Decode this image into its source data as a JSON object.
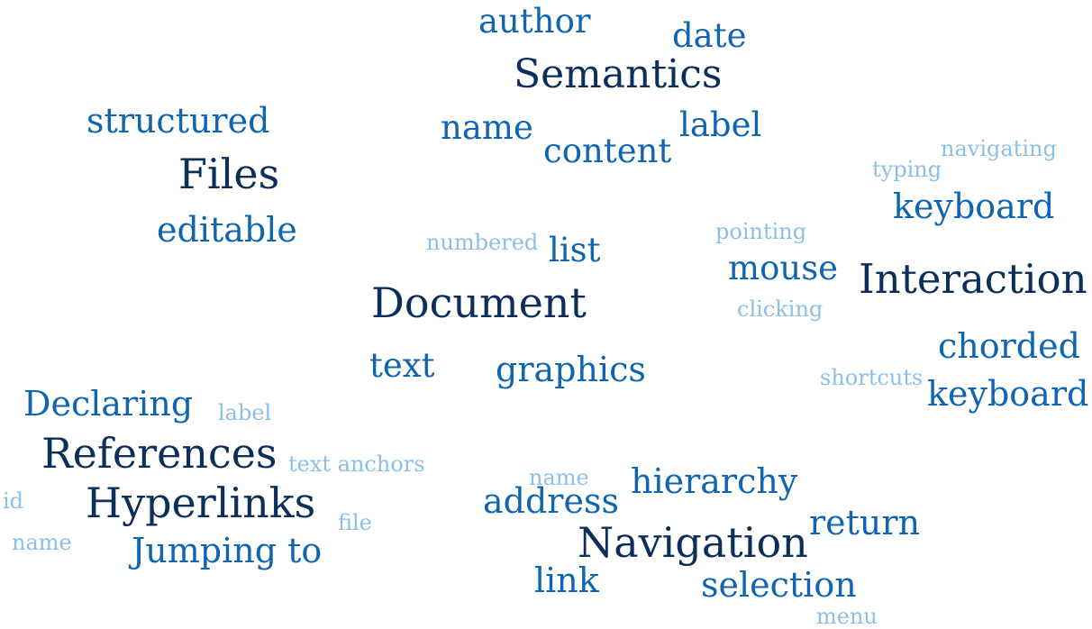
{
  "word_cloud": {
    "colors": {
      "dark": "#0b2f5a",
      "mid": "#0f65b0",
      "light": "#8cbfe6"
    },
    "words": {
      "author": "author",
      "date": "date",
      "semantics": "Semantics",
      "structured": "structured",
      "name_top": "name",
      "label_top": "label",
      "content": "content",
      "files": "Files",
      "navigating": "navigating",
      "typing": "typing",
      "keyboard_top": "keyboard",
      "editable": "editable",
      "numbered": "numbered",
      "list": "list",
      "pointing": "pointing",
      "mouse": "mouse",
      "interaction": "Interaction",
      "document": "Document",
      "clicking": "clicking",
      "chorded": "chorded",
      "text": "text",
      "graphics": "graphics",
      "shortcuts": "shortcuts",
      "keyboard_bottom": "keyboard",
      "declaring": "Declaring",
      "label_small": "label",
      "references": "References",
      "text_anchors": "text anchors",
      "name_small_mid": "name",
      "hierarchy": "hierarchy",
      "id": "id",
      "hyperlinks": "Hyperlinks",
      "address": "address",
      "file": "file",
      "return": "return",
      "name_small_left": "name",
      "jumping_to": "Jumping to",
      "navigation": "Navigation",
      "link": "link",
      "selection": "selection",
      "menu": "menu"
    }
  }
}
